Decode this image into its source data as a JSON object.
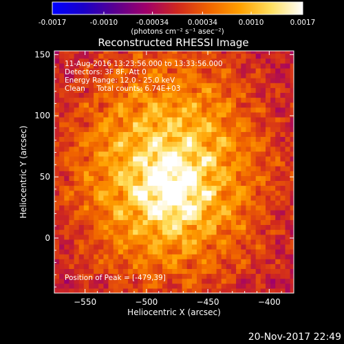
{
  "colorbar": {
    "tick_labels": [
      "-0.0017",
      "-0.0010",
      "-0.00034",
      "0.00034",
      "0.0010",
      "0.0017"
    ],
    "tick_values": [
      -0.0017,
      -0.001,
      -0.00034,
      0.00034,
      0.001,
      0.0017
    ],
    "range": [
      -0.0017,
      0.0017
    ],
    "units_label": "(photons cm⁻² s⁻¹ asec⁻²)",
    "colors": [
      "#0000ff",
      "#1a00c8",
      "#5a0090",
      "#a0006a",
      "#d0281e",
      "#f06400",
      "#ffa000",
      "#ffe060",
      "#ffffff"
    ]
  },
  "chart_data": {
    "type": "heatmap",
    "title": "Reconstructed RHESSI Image",
    "xlabel": "Heliocentric X (arcsec)",
    "ylabel": "Heliocentric Y (arcsec)",
    "xlim": [
      -575,
      -380
    ],
    "ylim": [
      -45,
      153
    ],
    "x_ticks": [
      -550,
      -500,
      -450,
      -400
    ],
    "y_ticks": [
      0,
      50,
      100,
      150
    ],
    "annotations": [
      "11-Aug-2016 13:23:56.000 to 13:33:56.000",
      "Detectors: 3F 8F, Att 0",
      "Energy Range: 12.0 - 25.0 keV",
      "Clean     Total counts: 6.74E+03"
    ],
    "peak_label": "Position of Peak = [-479,39]",
    "peak": [
      -479,
      39
    ],
    "source_center": [
      -482,
      55
    ],
    "source_radius_arcsec": 55,
    "pixel_size_arcsec": 4,
    "grid": false
  },
  "footer": {
    "timestamp": "20-Nov-2017 22:49"
  }
}
